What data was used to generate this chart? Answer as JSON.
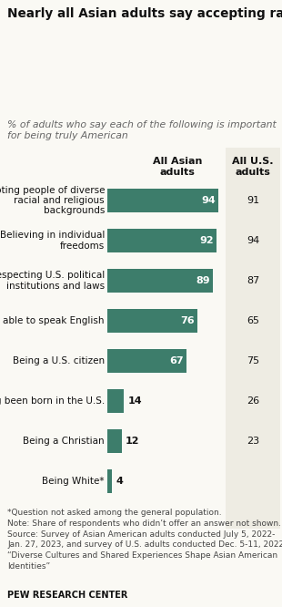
{
  "title": "Nearly all Asian adults say accepting racial and religious diversity and belief in individual freedoms are important for being truly American",
  "subtitle": "% of adults who say each of the following is important\nfor being truly American",
  "categories": [
    "Accepting people of diverse\nracial and religious\nbackgrounds",
    "Believing in individual\nfreedoms",
    "Respecting U.S. political\ninstitutions and laws",
    "Being able to speak English",
    "Being a U.S. citizen",
    "Having been born in the U.S.",
    "Being a Christian",
    "Being White*"
  ],
  "asian_values": [
    94,
    92,
    89,
    76,
    67,
    14,
    12,
    4
  ],
  "us_values": [
    91,
    94,
    87,
    65,
    75,
    26,
    23,
    null
  ],
  "bar_color": "#3d7d6b",
  "col1_header": "All Asian\nadults",
  "col2_header": "All U.S.\nadults",
  "footnote": "*Question not asked among the general population.\nNote: Share of respondents who didn’t offer an answer not shown.\nSource: Survey of Asian American adults conducted July 5, 2022-\nJan. 27, 2023, and survey of U.S. adults conducted Dec. 5-11, 2022.\n“Diverse Cultures and Shared Experiences Shape Asian American\nIdentities”",
  "source_label": "PEW RESEARCH CENTER",
  "bg_color": "#faf9f4",
  "us_col_bg": "#eeece3",
  "bar_label_color": "#ffffff",
  "title_fontsize": 9.8,
  "subtitle_fontsize": 7.8,
  "cat_fontsize": 7.5,
  "bar_fontsize": 8.0,
  "header_fontsize": 8.0,
  "footnote_fontsize": 6.5,
  "source_fontsize": 7.0
}
